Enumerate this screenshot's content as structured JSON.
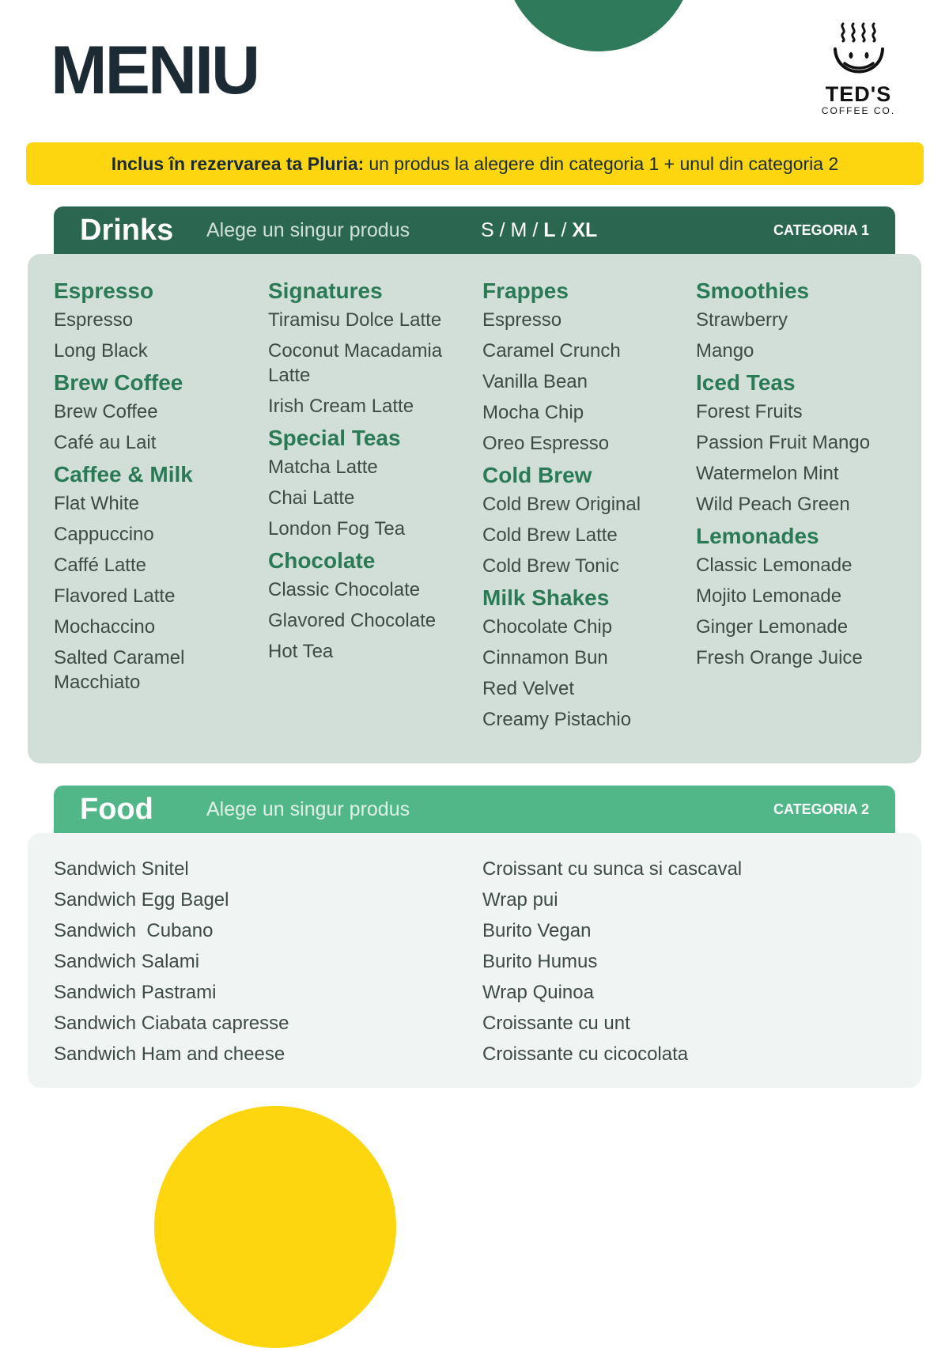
{
  "title": "MENIU",
  "logo": {
    "brand": "TED'S",
    "sub": "COFFEE CO.",
    "mark": "®"
  },
  "banner": {
    "bold": "Inclus în rezervarea ta Pluria:",
    "text": "un produs la alegere din categoria 1 + unul din categoria 2"
  },
  "colors": {
    "dark_green": "#2a6650",
    "light_green": "#52b788",
    "yellow": "#fdd60f",
    "panel_drinks": "#d2dfd8",
    "panel_food": "#f0f4f2",
    "heading": "#2a7a55"
  },
  "drinks": {
    "title": "Drinks",
    "subtitle": "Alege un singur produs",
    "sizes": {
      "s": "S",
      "m": "M",
      "l": "L",
      "xl": "XL",
      "sep": "/"
    },
    "category": "CATEGORIA 1",
    "columns": [
      [
        {
          "h": "Espresso"
        },
        {
          "i": "Espresso"
        },
        {
          "i": "Long Black"
        },
        {
          "h": "Brew Coffee"
        },
        {
          "i": "Brew Coffee"
        },
        {
          "i": "Café au Lait"
        },
        {
          "h": "Caffee & Milk"
        },
        {
          "i": "Flat White"
        },
        {
          "i": "Cappuccino"
        },
        {
          "i": "Caffé Latte"
        },
        {
          "i": "Flavored Latte"
        },
        {
          "i": "Mochaccino"
        },
        {
          "i": "Salted Caramel Macchiato"
        }
      ],
      [
        {
          "h": "Signatures"
        },
        {
          "i": "Tiramisu Dolce Latte"
        },
        {
          "i": "Coconut Macadamia Latte"
        },
        {
          "i": "Irish Cream Latte"
        },
        {
          "h": "Special Teas"
        },
        {
          "i": "Matcha Latte"
        },
        {
          "i": "Chai Latte"
        },
        {
          "i": "London Fog Tea"
        },
        {
          "h": "Chocolate"
        },
        {
          "i": "Classic Chocolate"
        },
        {
          "i": "Glavored Chocolate"
        },
        {
          "i": "Hot Tea"
        }
      ],
      [
        {
          "h": "Frappes"
        },
        {
          "i": "Espresso"
        },
        {
          "i": "Caramel Crunch"
        },
        {
          "i": "Vanilla Bean"
        },
        {
          "i": "Mocha Chip"
        },
        {
          "i": "Oreo Espresso"
        },
        {
          "h": "Cold Brew"
        },
        {
          "i": "Cold Brew Original"
        },
        {
          "i": "Cold Brew Latte"
        },
        {
          "i": "Cold Brew Tonic"
        },
        {
          "h": "Milk Shakes"
        },
        {
          "i": "Chocolate Chip"
        },
        {
          "i": "Cinnamon Bun"
        },
        {
          "i": "Red Velvet"
        },
        {
          "i": "Creamy Pistachio"
        }
      ],
      [
        {
          "h": "Smoothies"
        },
        {
          "i": "Strawberry"
        },
        {
          "i": "Mango"
        },
        {
          "h": "Iced Teas"
        },
        {
          "i": "Forest Fruits"
        },
        {
          "i": "Passion Fruit Mango"
        },
        {
          "i": "Watermelon Mint"
        },
        {
          "i": "Wild Peach Green"
        },
        {
          "h": "Lemonades"
        },
        {
          "i": "Classic Lemonade"
        },
        {
          "i": "Mojito Lemonade"
        },
        {
          "i": "Ginger Lemonade"
        },
        {
          "i": "Fresh Orange Juice"
        }
      ]
    ]
  },
  "food": {
    "title": "Food",
    "subtitle": "Alege un singur produs",
    "category": "CATEGORIA 2",
    "columns": [
      [
        "Sandwich Snitel",
        "Sandwich Egg Bagel",
        "Sandwich  Cubano",
        "Sandwich Salami",
        "Sandwich Pastrami",
        "Sandwich Ciabata capresse",
        "Sandwich Ham and cheese"
      ],
      [
        "Croissant cu sunca si cascaval",
        "Wrap pui",
        "Burito Vegan",
        "Burito Humus",
        "Wrap Quinoa",
        "Croissante cu unt",
        "Croissante cu cicocolata"
      ]
    ]
  }
}
